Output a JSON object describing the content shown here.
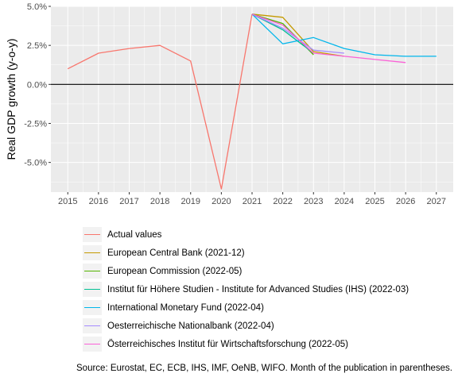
{
  "chart_data": {
    "type": "line",
    "ylabel": "Real GDP growth (y-o-y)",
    "xlim": [
      2014.45,
      2027.55
    ],
    "ylim": [
      -6.9,
      5.0
    ],
    "x_ticks": [
      2015,
      2016,
      2017,
      2018,
      2019,
      2020,
      2021,
      2022,
      2023,
      2024,
      2025,
      2026,
      2027
    ],
    "y_ticks": [
      {
        "value": 5.0,
        "label": "5.0%"
      },
      {
        "value": 2.5,
        "label": "2.5%"
      },
      {
        "value": 0.0,
        "label": "0.0%"
      },
      {
        "value": -2.5,
        "label": "-2.5%"
      },
      {
        "value": -5.0,
        "label": "-5.0%"
      }
    ],
    "zero_line": true,
    "grid": true,
    "legend_position": "bottom",
    "series": [
      {
        "name": "Actual values",
        "color": "#F8766D",
        "points": [
          [
            2015,
            1.0
          ],
          [
            2016,
            2.0
          ],
          [
            2017,
            2.3
          ],
          [
            2018,
            2.5
          ],
          [
            2019,
            1.5
          ],
          [
            2020,
            -6.7
          ],
          [
            2021,
            4.5
          ]
        ]
      },
      {
        "name": "European Central Bank (2021-12)",
        "color": "#C49A00",
        "points": [
          [
            2021,
            4.5
          ],
          [
            2022,
            4.3
          ],
          [
            2023,
            2.1
          ],
          [
            2024,
            1.8
          ]
        ]
      },
      {
        "name": "European Commission (2022-05)",
        "color": "#53B400",
        "points": [
          [
            2021,
            4.5
          ],
          [
            2022,
            3.9
          ],
          [
            2023,
            1.9
          ]
        ]
      },
      {
        "name": "Institut für Höhere Studien - Institute for Advanced Studies (IHS) (2022-03)",
        "color": "#00C094",
        "points": [
          [
            2021,
            4.5
          ],
          [
            2022,
            3.5
          ],
          [
            2023,
            2.0
          ]
        ]
      },
      {
        "name": "International Monetary Fund (2022-04)",
        "color": "#00B6EB",
        "points": [
          [
            2021,
            4.5
          ],
          [
            2022,
            2.6
          ],
          [
            2023,
            3.0
          ],
          [
            2024,
            2.3
          ],
          [
            2025,
            1.9
          ],
          [
            2026,
            1.8
          ],
          [
            2027,
            1.8
          ]
        ]
      },
      {
        "name": "Oesterreichische Nationalbank (2022-04)",
        "color": "#A58AFF",
        "points": [
          [
            2021,
            4.5
          ],
          [
            2022,
            3.6
          ],
          [
            2023,
            2.2
          ],
          [
            2024,
            2.0
          ]
        ]
      },
      {
        "name": "Österreichisches Institut für Wirtschaftsforschung (2022-05)",
        "color": "#FB61D7",
        "points": [
          [
            2021,
            4.5
          ],
          [
            2022,
            3.8
          ],
          [
            2023,
            2.0
          ],
          [
            2024,
            1.8
          ],
          [
            2025,
            1.6
          ],
          [
            2026,
            1.4
          ]
        ]
      }
    ]
  },
  "caption": "Source: Eurostat, EC, ECB, IHS, IMF, OeNB, WIFO. Month of the publication in parentheses."
}
